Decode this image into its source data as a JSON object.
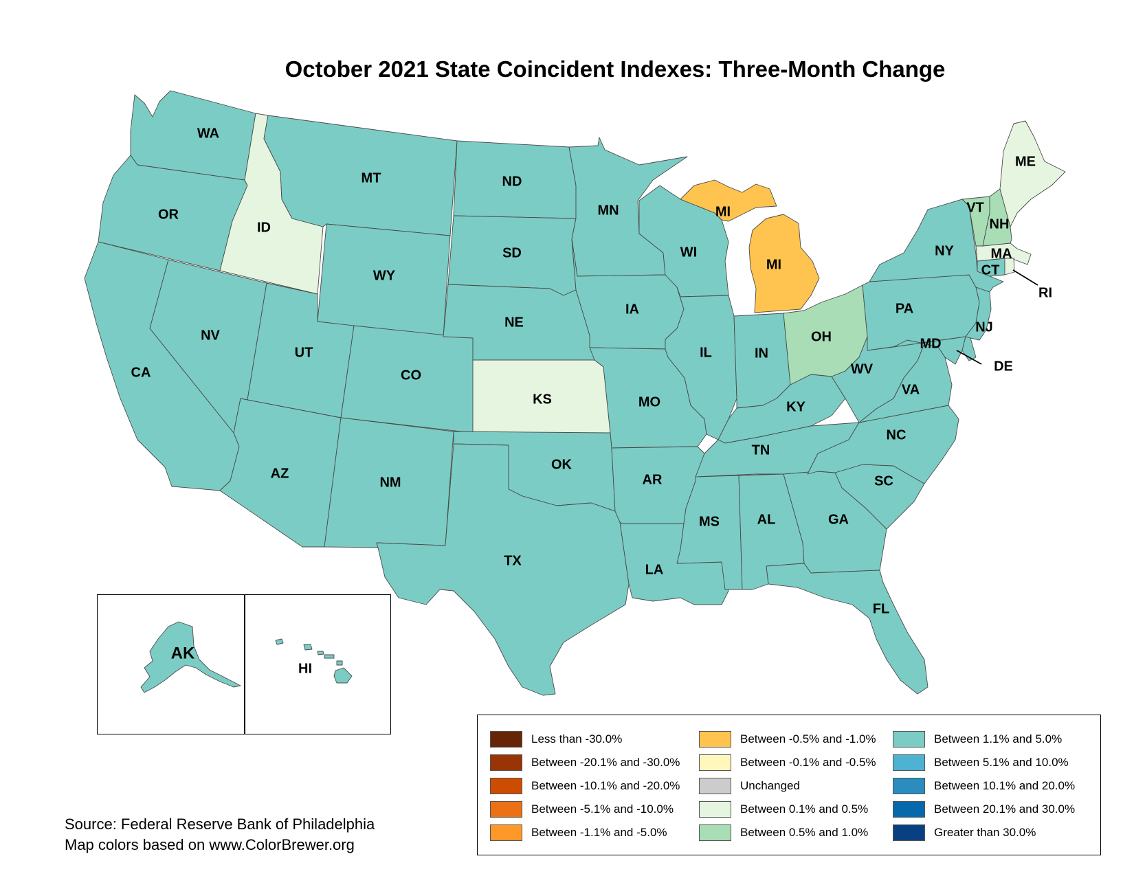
{
  "title": "October 2021 State Coincident Indexes: Three-Month Change",
  "colors": {
    "lt_-30": "#662506",
    "-20_-30": "#993404",
    "-10_-20": "#cc4c02",
    "-5_-10": "#ec7014",
    "-1_-5": "#fe9929",
    "-0.5_-1": "#fec44f",
    "-0.1_-0.5": "#fff7bc",
    "unchanged": "#cccccc",
    "0.1_0.5": "#e5f5e0",
    "0.5_1": "#a8ddb5",
    "1.1_5": "#7bccc4",
    "5.1_10": "#4eb3d3",
    "10.1_20": "#2b8cbe",
    "20.1_30": "#0868ac",
    "gt_30": "#084081"
  },
  "legend": {
    "col1": [
      {
        "label": "Less than -30.0%",
        "color": "#662506"
      },
      {
        "label": "Between -20.1% and -30.0%",
        "color": "#993404"
      },
      {
        "label": "Between -10.1% and -20.0%",
        "color": "#cc4c02"
      },
      {
        "label": "Between -5.1% and -10.0%",
        "color": "#ec7014"
      },
      {
        "label": "Between -1.1% and -5.0%",
        "color": "#fe9929"
      }
    ],
    "col2": [
      {
        "label": "Between -0.5% and -1.0%",
        "color": "#fec44f"
      },
      {
        "label": "Between -0.1% and -0.5%",
        "color": "#fff7bc"
      },
      {
        "label": "Unchanged",
        "color": "#cccccc"
      },
      {
        "label": "Between 0.1% and 0.5%",
        "color": "#e5f5e0"
      },
      {
        "label": "Between 0.5% and 1.0%",
        "color": "#a8ddb5"
      }
    ],
    "col3": [
      {
        "label": "Between 1.1% and 5.0%",
        "color": "#7bccc4"
      },
      {
        "label": "Between 5.1% and 10.0%",
        "color": "#4eb3d3"
      },
      {
        "label": "Between 10.1% and 20.0%",
        "color": "#2b8cbe"
      },
      {
        "label": "Between 20.1% and 30.0%",
        "color": "#0868ac"
      },
      {
        "label": "Greater than 30.0%",
        "color": "#084081"
      }
    ]
  },
  "states": {
    "WA": {
      "label": "WA",
      "category": "Between 1.1% and 5.0%"
    },
    "OR": {
      "label": "OR",
      "category": "Between 1.1% and 5.0%"
    },
    "CA": {
      "label": "CA",
      "category": "Between 1.1% and 5.0%"
    },
    "ID": {
      "label": "ID",
      "category": "Between 0.1% and 0.5%"
    },
    "NV": {
      "label": "NV",
      "category": "Between 1.1% and 5.0%"
    },
    "MT": {
      "label": "MT",
      "category": "Between 1.1% and 5.0%"
    },
    "WY": {
      "label": "WY",
      "category": "Between 1.1% and 5.0%"
    },
    "UT": {
      "label": "UT",
      "category": "Between 1.1% and 5.0%"
    },
    "AZ": {
      "label": "AZ",
      "category": "Between 1.1% and 5.0%"
    },
    "CO": {
      "label": "CO",
      "category": "Between 1.1% and 5.0%"
    },
    "NM": {
      "label": "NM",
      "category": "Between 1.1% and 5.0%"
    },
    "ND": {
      "label": "ND",
      "category": "Between 1.1% and 5.0%"
    },
    "SD": {
      "label": "SD",
      "category": "Between 1.1% and 5.0%"
    },
    "NE": {
      "label": "NE",
      "category": "Between 1.1% and 5.0%"
    },
    "KS": {
      "label": "KS",
      "category": "Between 0.1% and 0.5%"
    },
    "OK": {
      "label": "OK",
      "category": "Between 1.1% and 5.0%"
    },
    "TX": {
      "label": "TX",
      "category": "Between 1.1% and 5.0%"
    },
    "MN": {
      "label": "MN",
      "category": "Between 1.1% and 5.0%"
    },
    "IA": {
      "label": "IA",
      "category": "Between 1.1% and 5.0%"
    },
    "MO": {
      "label": "MO",
      "category": "Between 1.1% and 5.0%"
    },
    "AR": {
      "label": "AR",
      "category": "Between 1.1% and 5.0%"
    },
    "LA": {
      "label": "LA",
      "category": "Between 1.1% and 5.0%"
    },
    "WI": {
      "label": "WI",
      "category": "Between 1.1% and 5.0%"
    },
    "IL": {
      "label": "IL",
      "category": "Between 1.1% and 5.0%"
    },
    "MI": {
      "label": "MI",
      "category": "Between -0.5% and -1.0%"
    },
    "IN": {
      "label": "IN",
      "category": "Between 1.1% and 5.0%"
    },
    "OH": {
      "label": "OH",
      "category": "Between 0.5% and 1.0%"
    },
    "KY": {
      "label": "KY",
      "category": "Between 1.1% and 5.0%"
    },
    "TN": {
      "label": "TN",
      "category": "Between 1.1% and 5.0%"
    },
    "MS": {
      "label": "MS",
      "category": "Between 1.1% and 5.0%"
    },
    "AL": {
      "label": "AL",
      "category": "Between 1.1% and 5.0%"
    },
    "GA": {
      "label": "GA",
      "category": "Between 1.1% and 5.0%"
    },
    "FL": {
      "label": "FL",
      "category": "Between 1.1% and 5.0%"
    },
    "SC": {
      "label": "SC",
      "category": "Between 1.1% and 5.0%"
    },
    "NC": {
      "label": "NC",
      "category": "Between 1.1% and 5.0%"
    },
    "VA": {
      "label": "VA",
      "category": "Between 1.1% and 5.0%"
    },
    "WV": {
      "label": "WV",
      "category": "Between 1.1% and 5.0%"
    },
    "MD": {
      "label": "MD",
      "category": "Between 1.1% and 5.0%"
    },
    "DE": {
      "label": "DE",
      "category": "Between 1.1% and 5.0%"
    },
    "PA": {
      "label": "PA",
      "category": "Between 1.1% and 5.0%"
    },
    "NJ": {
      "label": "NJ",
      "category": "Between 1.1% and 5.0%"
    },
    "NY": {
      "label": "NY",
      "category": "Between 1.1% and 5.0%"
    },
    "CT": {
      "label": "CT",
      "category": "Between 1.1% and 5.0%"
    },
    "RI": {
      "label": "RI",
      "category": "Between 0.1% and 0.5%"
    },
    "MA": {
      "label": "MA",
      "category": "Between 0.1% and 0.5%"
    },
    "VT": {
      "label": "VT",
      "category": "Between 0.5% and 1.0%"
    },
    "NH": {
      "label": "NH",
      "category": "Between 0.5% and 1.0%"
    },
    "ME": {
      "label": "ME",
      "category": "Between 0.1% and 0.5%"
    },
    "AK": {
      "label": "AK",
      "category": "Between 1.1% and 5.0%"
    },
    "HI": {
      "label": "HI",
      "category": "Between 1.1% and 5.0%"
    }
  },
  "source": {
    "line1": "Source: Federal Reserve Bank of Philadelphia",
    "line2": "Map colors based on www.ColorBrewer.org"
  }
}
